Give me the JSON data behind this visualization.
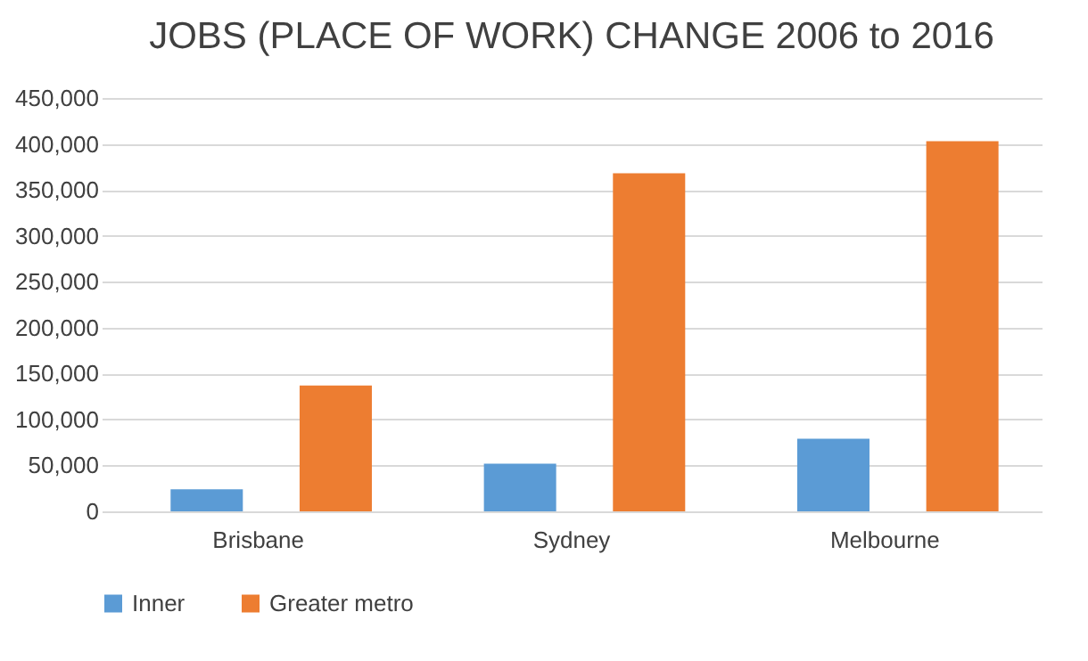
{
  "chart_data": {
    "type": "bar",
    "title": "JOBS (PLACE OF WORK) CHANGE 2006 to 2016",
    "categories": [
      "Brisbane",
      "Sydney",
      "Melbourne"
    ],
    "series": [
      {
        "name": "Inner",
        "color": "#5b9bd5",
        "values": [
          24000,
          52000,
          79000
        ]
      },
      {
        "name": "Greater metro",
        "color": "#ed7d31",
        "values": [
          137000,
          368000,
          403000
        ]
      }
    ],
    "ylim": [
      0,
      450000
    ],
    "yticks": [
      {
        "value": 0,
        "label": "0"
      },
      {
        "value": 50000,
        "label": "50,000"
      },
      {
        "value": 100000,
        "label": "100,000"
      },
      {
        "value": 150000,
        "label": "150,000"
      },
      {
        "value": 200000,
        "label": "200,000"
      },
      {
        "value": 250000,
        "label": "250,000"
      },
      {
        "value": 300000,
        "label": "300,000"
      },
      {
        "value": 350000,
        "label": "350,000"
      },
      {
        "value": 400000,
        "label": "400,000"
      },
      {
        "value": 450000,
        "label": "450,000"
      }
    ],
    "grid": "y",
    "legend": "bottom"
  }
}
